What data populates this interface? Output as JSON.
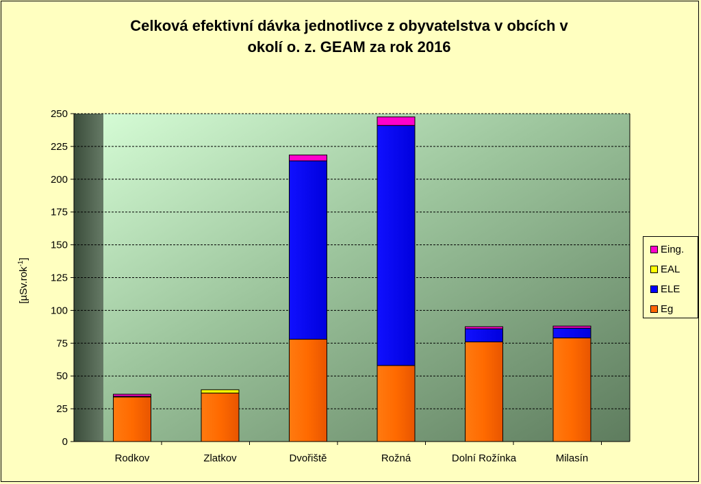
{
  "chart_data": {
    "type": "bar",
    "stacked": true,
    "title_lines": [
      "Celková efektivní dávka jednotlivce z obyvatelstva  v obcích v",
      "okolí o. z. GEAM za rok 2016"
    ],
    "ylabel_prefix": "[µSv.rok",
    "ylabel_sup": "-1",
    "ylabel_suffix": "]",
    "xlabel": "",
    "ylim": [
      0,
      250
    ],
    "yticks": [
      0,
      25,
      50,
      75,
      100,
      125,
      150,
      175,
      200,
      225,
      250
    ],
    "grid": true,
    "legend_position": "right",
    "categories": [
      "Rodkov",
      "Zlatkov",
      "Dvořiště",
      "Rožná",
      "Dolní Rožínka",
      "Milasín"
    ],
    "series": [
      {
        "name": "Eg",
        "color": "#ff6600",
        "values": [
          34,
          37,
          78,
          58,
          76,
          79
        ]
      },
      {
        "name": "ELE",
        "color": "#0000ff",
        "values": [
          0.5,
          0,
          136,
          183,
          10,
          7.5
        ]
      },
      {
        "name": "EAL",
        "color": "#ffff00",
        "values": [
          0,
          2.5,
          0,
          0,
          0,
          0
        ]
      },
      {
        "name": "Eing.",
        "color": "#ff00cc",
        "values": [
          0.5,
          0,
          4.5,
          6.5,
          0.5,
          0.5
        ]
      }
    ],
    "legend_order": [
      "Eing.",
      "EAL",
      "ELE",
      "Eg"
    ]
  }
}
